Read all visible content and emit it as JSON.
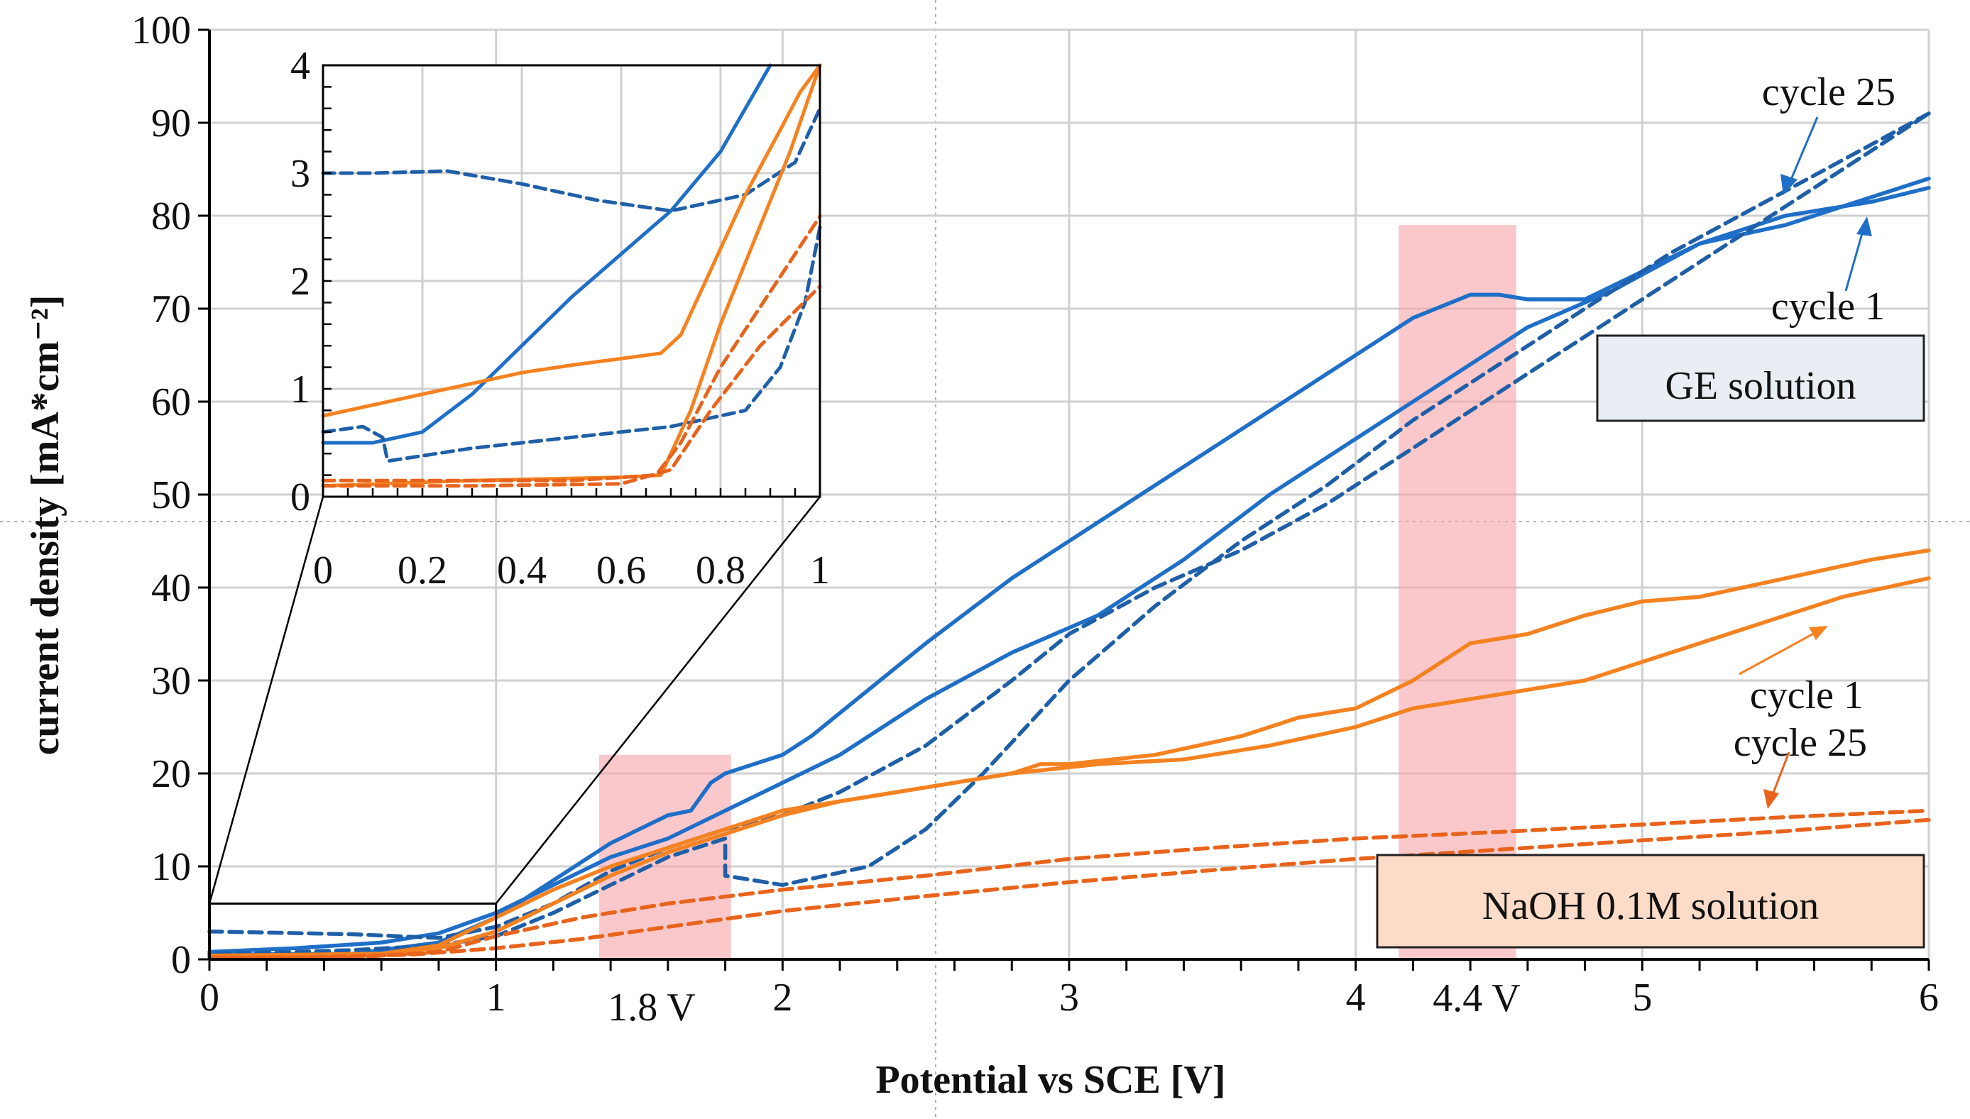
{
  "chart_data": {
    "type": "line",
    "xlabel": "Potential vs SCE [V]",
    "ylabel": "current density [mA*cm⁻²]",
    "xlim": [
      0,
      6
    ],
    "ylim": [
      0,
      100
    ],
    "x_ticks": [
      "0",
      "1",
      "2",
      "3",
      "4",
      "5",
      "6"
    ],
    "y_ticks": [
      "0",
      "10",
      "20",
      "30",
      "40",
      "50",
      "60",
      "70",
      "80",
      "90",
      "100"
    ],
    "grid": true,
    "series": [
      {
        "name": "GE solution cycle 1 forward",
        "color": "#1f6fc8",
        "dash": false,
        "points": [
          [
            0,
            0.5
          ],
          [
            0.5,
            0.6
          ],
          [
            0.8,
            1.8
          ],
          [
            1,
            4.5
          ],
          [
            1.2,
            8.5
          ],
          [
            1.4,
            12.5
          ],
          [
            1.6,
            15.5
          ],
          [
            1.68,
            16
          ],
          [
            1.75,
            19
          ],
          [
            1.8,
            20
          ],
          [
            1.9,
            21
          ],
          [
            2,
            22
          ],
          [
            2.1,
            24
          ],
          [
            2.3,
            29
          ],
          [
            2.5,
            34
          ],
          [
            2.8,
            41
          ],
          [
            3,
            45
          ],
          [
            3.3,
            51
          ],
          [
            3.6,
            57
          ],
          [
            3.9,
            63
          ],
          [
            4.2,
            69
          ],
          [
            4.4,
            71.5
          ],
          [
            4.5,
            71.5
          ],
          [
            4.6,
            71
          ],
          [
            4.8,
            71
          ],
          [
            5,
            74
          ],
          [
            5.2,
            77
          ],
          [
            5.5,
            80
          ],
          [
            5.8,
            81.5
          ],
          [
            6,
            83
          ]
        ]
      },
      {
        "name": "GE solution cycle 1 reverse",
        "color": "#1f6fc8",
        "dash": false,
        "points": [
          [
            6,
            84
          ],
          [
            5.8,
            82
          ],
          [
            5.5,
            79
          ],
          [
            5.2,
            77
          ],
          [
            4.9,
            72
          ],
          [
            4.6,
            68
          ],
          [
            4.4,
            64
          ],
          [
            4.2,
            60
          ],
          [
            4,
            56
          ],
          [
            3.7,
            50
          ],
          [
            3.4,
            43
          ],
          [
            3.1,
            37
          ],
          [
            2.8,
            33
          ],
          [
            2.5,
            28
          ],
          [
            2.2,
            22
          ],
          [
            2,
            19
          ],
          [
            1.8,
            16
          ],
          [
            1.6,
            13
          ],
          [
            1.4,
            11
          ],
          [
            1.2,
            8
          ],
          [
            1,
            5
          ],
          [
            0.8,
            2.8
          ],
          [
            0.6,
            1.8
          ],
          [
            0.3,
            1.2
          ],
          [
            0,
            0.8
          ]
        ]
      },
      {
        "name": "GE solution cycle 25 forward",
        "color": "#1f5fa8",
        "dash": true,
        "points": [
          [
            0,
            3
          ],
          [
            0.5,
            2.7
          ],
          [
            0.8,
            2.3
          ],
          [
            1,
            3.5
          ],
          [
            1.2,
            6
          ],
          [
            1.4,
            9.5
          ],
          [
            1.6,
            12
          ],
          [
            1.8,
            14
          ],
          [
            2,
            15.5
          ],
          [
            2.2,
            18
          ],
          [
            2.5,
            23
          ],
          [
            2.8,
            30
          ],
          [
            3,
            35
          ],
          [
            3.3,
            40
          ],
          [
            3.6,
            44
          ],
          [
            3.9,
            49
          ],
          [
            4.2,
            55
          ],
          [
            4.5,
            61
          ],
          [
            4.8,
            67
          ],
          [
            5,
            71
          ],
          [
            5.3,
            77
          ],
          [
            5.6,
            83
          ],
          [
            6,
            91
          ]
        ]
      },
      {
        "name": "GE solution cycle 25 reverse",
        "color": "#1f5fa8",
        "dash": true,
        "points": [
          [
            6,
            91
          ],
          [
            5.7,
            86
          ],
          [
            5.4,
            81
          ],
          [
            5.1,
            76
          ],
          [
            4.8,
            70
          ],
          [
            4.5,
            64
          ],
          [
            4.2,
            58
          ],
          [
            3.9,
            51
          ],
          [
            3.6,
            45
          ],
          [
            3.3,
            38
          ],
          [
            3,
            30
          ],
          [
            2.7,
            20
          ],
          [
            2.5,
            14
          ],
          [
            2.3,
            10
          ],
          [
            2,
            8
          ],
          [
            1.8,
            9
          ],
          [
            1.8,
            13
          ],
          [
            1.6,
            11
          ],
          [
            1.4,
            8
          ],
          [
            1.2,
            5
          ],
          [
            1,
            2.5
          ],
          [
            0.8,
            1.5
          ],
          [
            0.5,
            1
          ],
          [
            0.3,
            0.8
          ],
          [
            0,
            0.6
          ]
        ]
      },
      {
        "name": "NaOH 0.1M solution cycle 1 forward",
        "color": "#f58220",
        "dash": false,
        "points": [
          [
            0,
            0.3
          ],
          [
            0.5,
            0.3
          ],
          [
            0.8,
            1.2
          ],
          [
            1,
            3
          ],
          [
            1.2,
            6
          ],
          [
            1.4,
            9
          ],
          [
            1.6,
            11.5
          ],
          [
            1.8,
            13.5
          ],
          [
            2,
            15.5
          ],
          [
            2.2,
            17
          ],
          [
            2.5,
            18.5
          ],
          [
            2.8,
            20
          ],
          [
            2.9,
            21
          ],
          [
            3,
            21
          ],
          [
            3.3,
            22
          ],
          [
            3.6,
            24
          ],
          [
            3.8,
            26
          ],
          [
            4,
            27
          ],
          [
            4.2,
            30
          ],
          [
            4.4,
            34
          ],
          [
            4.6,
            35
          ],
          [
            4.8,
            37
          ],
          [
            5,
            38.5
          ],
          [
            5.2,
            39
          ],
          [
            5.5,
            41
          ],
          [
            5.8,
            43
          ],
          [
            6,
            44
          ]
        ]
      },
      {
        "name": "NaOH 0.1M solution cycle 1 reverse",
        "color": "#f58220",
        "dash": false,
        "points": [
          [
            6,
            41
          ],
          [
            5.7,
            39
          ],
          [
            5.4,
            36
          ],
          [
            5.1,
            33
          ],
          [
            4.8,
            30
          ],
          [
            4.5,
            28.5
          ],
          [
            4.2,
            27
          ],
          [
            4,
            25
          ],
          [
            3.7,
            23
          ],
          [
            3.4,
            21.5
          ],
          [
            3.1,
            21
          ],
          [
            2.8,
            20
          ],
          [
            2.5,
            18.5
          ],
          [
            2.2,
            17
          ],
          [
            2,
            16
          ],
          [
            1.8,
            14
          ],
          [
            1.6,
            12
          ],
          [
            1.4,
            10
          ],
          [
            1.2,
            7.5
          ],
          [
            1,
            4.5
          ],
          [
            0.8,
            1.5
          ],
          [
            0.6,
            0.6
          ],
          [
            0.3,
            0.5
          ],
          [
            0,
            0.4
          ]
        ]
      },
      {
        "name": "NaOH 0.1M solution cycle 25 forward",
        "color": "#e8641c",
        "dash": true,
        "points": [
          [
            0,
            0.2
          ],
          [
            0.5,
            0.2
          ],
          [
            0.8,
            0.8
          ],
          [
            1,
            2.5
          ],
          [
            1.3,
            4.5
          ],
          [
            1.6,
            6
          ],
          [
            2,
            7.5
          ],
          [
            2.5,
            9
          ],
          [
            3,
            10.8
          ],
          [
            3.5,
            12
          ],
          [
            4,
            13
          ],
          [
            4.5,
            13.7
          ],
          [
            5,
            14.5
          ],
          [
            5.5,
            15.3
          ],
          [
            6,
            16
          ]
        ]
      },
      {
        "name": "NaOH 0.1M solution cycle 25 reverse",
        "color": "#e8641c",
        "dash": true,
        "points": [
          [
            6,
            15
          ],
          [
            5.5,
            13.8
          ],
          [
            5,
            12.8
          ],
          [
            4.5,
            11.8
          ],
          [
            4,
            10.8
          ],
          [
            3.5,
            9.6
          ],
          [
            3,
            8.3
          ],
          [
            2.5,
            6.8
          ],
          [
            2,
            5.2
          ],
          [
            1.6,
            3.5
          ],
          [
            1.3,
            2.2
          ],
          [
            1,
            1.2
          ],
          [
            0.7,
            0.5
          ],
          [
            0.3,
            0.2
          ],
          [
            0,
            0.2
          ]
        ]
      }
    ],
    "annotations": [
      {
        "text": "cycle 25",
        "group": "GE solution"
      },
      {
        "text": "cycle 1",
        "group": "GE solution"
      },
      {
        "text": "cycle 1",
        "group": "NaOH 0.1M solution"
      },
      {
        "text": "cycle 25",
        "group": "NaOH 0.1M solution"
      },
      {
        "text": "1.8 V"
      },
      {
        "text": "4.4 V"
      }
    ],
    "highlight_bands": [
      {
        "label": "1.8 V",
        "x_range": [
          1.36,
          1.82
        ],
        "y_range": [
          0,
          22
        ],
        "color": "#f6a3a8"
      },
      {
        "label": "4.4 V",
        "x_range": [
          4.15,
          4.56
        ],
        "y_range": [
          0,
          79
        ],
        "color": "#f6a3a8"
      }
    ],
    "legend_boxes": [
      {
        "text": "GE solution",
        "fill": "#e8eef3"
      },
      {
        "text": "NaOH 0.1M solution",
        "fill": "#fcdcc8"
      }
    ],
    "inset": {
      "xlim": [
        0,
        1
      ],
      "ylim": [
        0,
        4
      ],
      "x_ticks": [
        "0",
        "0.2",
        "0.4",
        "0.6",
        "0.8",
        "1"
      ],
      "y_ticks": [
        "0",
        "1",
        "2",
        "3",
        "4"
      ],
      "zoom_region": {
        "x_range": [
          0,
          1
        ],
        "y_range": [
          0,
          6
        ]
      },
      "series": [
        {
          "name": "GE solution cycle 1 forward",
          "color": "#1f6fc8",
          "dash": false,
          "points": [
            [
              0,
              0.5
            ],
            [
              0.1,
              0.5
            ],
            [
              0.2,
              0.6
            ],
            [
              0.3,
              0.95
            ],
            [
              0.4,
              1.4
            ],
            [
              0.5,
              1.85
            ],
            [
              0.6,
              2.25
            ],
            [
              0.7,
              2.65
            ],
            [
              0.8,
              3.2
            ],
            [
              0.9,
              4
            ]
          ]
        },
        {
          "name": "GE solution cycle 25",
          "color": "#1f5fa8",
          "dash": true,
          "points": [
            [
              0,
              3
            ],
            [
              0.1,
              3
            ],
            [
              0.25,
              3.02
            ],
            [
              0.4,
              2.9
            ],
            [
              0.55,
              2.75
            ],
            [
              0.7,
              2.65
            ],
            [
              0.85,
              2.8
            ],
            [
              0.95,
              3.1
            ],
            [
              1,
              3.6
            ]
          ]
        },
        {
          "name": "GE solution cycle 25 low branch",
          "color": "#1f5fa8",
          "dash": true,
          "points": [
            [
              0,
              0.6
            ],
            [
              0.08,
              0.65
            ],
            [
              0.12,
              0.55
            ],
            [
              0.13,
              0.33
            ],
            [
              0.3,
              0.45
            ],
            [
              0.5,
              0.55
            ],
            [
              0.7,
              0.65
            ],
            [
              0.85,
              0.8
            ],
            [
              0.92,
              1.2
            ],
            [
              0.97,
              1.8
            ],
            [
              1,
              2.5
            ]
          ]
        },
        {
          "name": "NaOH 0.1M solution cycle 1",
          "color": "#f58220",
          "dash": false,
          "points": [
            [
              0,
              0.75
            ],
            [
              0.1,
              0.85
            ],
            [
              0.2,
              0.95
            ],
            [
              0.3,
              1.05
            ],
            [
              0.4,
              1.15
            ],
            [
              0.5,
              1.22
            ],
            [
              0.6,
              1.28
            ],
            [
              0.68,
              1.33
            ],
            [
              0.72,
              1.5
            ],
            [
              0.78,
              2.1
            ],
            [
              0.85,
              2.8
            ],
            [
              0.92,
              3.4
            ],
            [
              0.96,
              3.75
            ],
            [
              1,
              4
            ]
          ]
        },
        {
          "name": "NaOH 0.1M solution cycle 1 low branch",
          "color": "#f58220",
          "dash": false,
          "points": [
            [
              0,
              0.1
            ],
            [
              0.3,
              0.15
            ],
            [
              0.6,
              0.18
            ],
            [
              0.68,
              0.2
            ],
            [
              0.74,
              0.8
            ],
            [
              0.8,
              1.6
            ],
            [
              0.87,
              2.4
            ],
            [
              0.94,
              3.2
            ],
            [
              1,
              4
            ]
          ]
        },
        {
          "name": "NaOH 0.1M solution cycle 25",
          "color": "#e8641c",
          "dash": true,
          "points": [
            [
              0,
              0.15
            ],
            [
              0.2,
              0.15
            ],
            [
              0.5,
              0.15
            ],
            [
              0.67,
              0.2
            ],
            [
              0.72,
              0.5
            ],
            [
              0.8,
              1.2
            ],
            [
              0.9,
              1.9
            ],
            [
              1,
              2.6
            ]
          ]
        },
        {
          "name": "NaOH 0.1M solution cycle 25 low branch",
          "color": "#e8641c",
          "dash": true,
          "points": [
            [
              0,
              0.1
            ],
            [
              0.3,
              0.1
            ],
            [
              0.6,
              0.12
            ],
            [
              0.7,
              0.25
            ],
            [
              0.78,
              0.8
            ],
            [
              0.88,
              1.4
            ],
            [
              1,
              1.95
            ]
          ]
        }
      ]
    }
  }
}
